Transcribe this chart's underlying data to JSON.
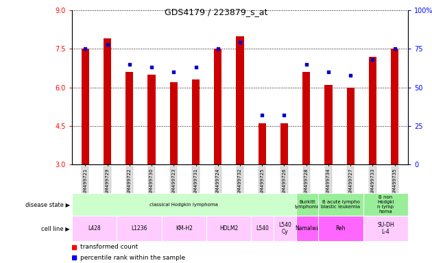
{
  "title": "GDS4179 / 223879_s_at",
  "samples": [
    "GSM499721",
    "GSM499729",
    "GSM499722",
    "GSM499730",
    "GSM499723",
    "GSM499731",
    "GSM499724",
    "GSM499732",
    "GSM499725",
    "GSM499726",
    "GSM499728",
    "GSM499734",
    "GSM499727",
    "GSM499733",
    "GSM499735"
  ],
  "transformed_count": [
    7.5,
    7.9,
    6.6,
    6.5,
    6.2,
    6.3,
    7.5,
    8.0,
    4.6,
    4.6,
    6.6,
    6.1,
    6.0,
    7.2,
    7.5
  ],
  "percentile_rank": [
    75,
    78,
    65,
    63,
    60,
    63,
    75,
    79,
    32,
    32,
    65,
    60,
    58,
    68,
    75
  ],
  "ylim_left": [
    3,
    9
  ],
  "ylim_right": [
    0,
    100
  ],
  "yticks_left": [
    3,
    4.5,
    6,
    7.5,
    9
  ],
  "yticks_right": [
    0,
    25,
    50,
    75,
    100
  ],
  "bar_color": "#cc0000",
  "dot_color": "#0000cc",
  "disease_state_groups": [
    {
      "label": "classical Hodgkin lymphoma",
      "start": 0,
      "end": 10,
      "color": "#ccffcc"
    },
    {
      "label": "Burkitt\nlymphoma",
      "start": 10,
      "end": 11,
      "color": "#99ee99"
    },
    {
      "label": "B acute lympho\nblastic leukemia",
      "start": 11,
      "end": 13,
      "color": "#99ee99"
    },
    {
      "label": "B non\nHodgki\nn lymp\nhoma",
      "start": 13,
      "end": 15,
      "color": "#99ee99"
    }
  ],
  "cell_line_groups": [
    {
      "label": "L428",
      "start": 0,
      "end": 2,
      "color": "#ffccff"
    },
    {
      "label": "L1236",
      "start": 2,
      "end": 4,
      "color": "#ffccff"
    },
    {
      "label": "KM-H2",
      "start": 4,
      "end": 6,
      "color": "#ffccff"
    },
    {
      "label": "HDLM2",
      "start": 6,
      "end": 8,
      "color": "#ffccff"
    },
    {
      "label": "L540",
      "start": 8,
      "end": 9,
      "color": "#ffccff"
    },
    {
      "label": "L540\nCy",
      "start": 9,
      "end": 10,
      "color": "#ffccff"
    },
    {
      "label": "Namalwa",
      "start": 10,
      "end": 11,
      "color": "#ff66ff"
    },
    {
      "label": "Reh",
      "start": 11,
      "end": 13,
      "color": "#ff66ff"
    },
    {
      "label": "SU-DH\nL-4",
      "start": 13,
      "end": 15,
      "color": "#ffccff"
    }
  ]
}
